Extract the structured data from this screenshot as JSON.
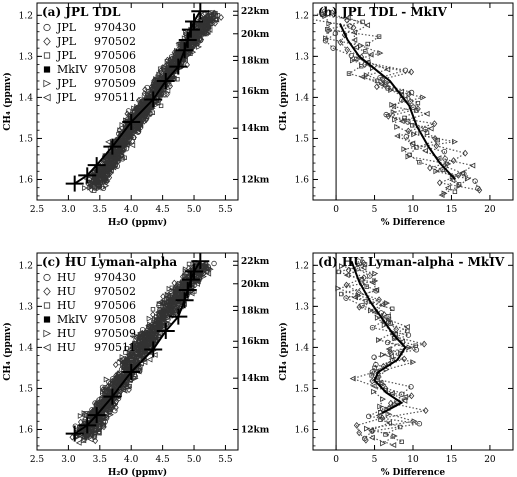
{
  "chart_data": [
    {
      "type": "scatter",
      "title": "(a) JPL TDL",
      "xlabel": "H₂O (ppmv)",
      "ylabel": "CH₄ (ppmv)",
      "xlim": [
        2.5,
        5.7
      ],
      "ylim": [
        1.65,
        1.17
      ],
      "xticks": [
        "2.5",
        "3.0",
        "3.5",
        "4.0",
        "4.5",
        "5.0",
        "5.5"
      ],
      "yticks": [
        "1.2",
        "1.3",
        "1.4",
        "1.5",
        "1.6"
      ],
      "altitude_ticks": [
        {
          "label": "22km",
          "ch4": 1.19
        },
        {
          "label": "20km",
          "ch4": 1.245
        },
        {
          "label": "18km",
          "ch4": 1.31
        },
        {
          "label": "16km",
          "ch4": 1.385
        },
        {
          "label": "14km",
          "ch4": 1.475
        },
        {
          "label": "12km",
          "ch4": 1.6
        }
      ],
      "legend": [
        {
          "instrument": "JPL",
          "date": "970430",
          "marker": "circle"
        },
        {
          "instrument": "JPL",
          "date": "970502",
          "marker": "diamond"
        },
        {
          "instrument": "JPL",
          "date": "970506",
          "marker": "square"
        },
        {
          "instrument": "MkIV",
          "date": "970508",
          "marker": "filled-square"
        },
        {
          "instrument": "JPL",
          "date": "970509",
          "marker": "triangle-right"
        },
        {
          "instrument": "JPL",
          "date": "970511",
          "marker": "triangle-left"
        }
      ],
      "mkiv_profile": [
        {
          "h2o": 5.1,
          "ch4": 1.19
        },
        {
          "h2o": 5.0,
          "ch4": 1.215
        },
        {
          "h2o": 4.95,
          "ch4": 1.235
        },
        {
          "h2o": 4.9,
          "ch4": 1.26
        },
        {
          "h2o": 4.85,
          "ch4": 1.285
        },
        {
          "h2o": 4.75,
          "ch4": 1.325
        },
        {
          "h2o": 4.55,
          "ch4": 1.36
        },
        {
          "h2o": 4.35,
          "ch4": 1.405
        },
        {
          "h2o": 4.0,
          "ch4": 1.46
        },
        {
          "h2o": 3.7,
          "ch4": 1.52
        },
        {
          "h2o": 3.45,
          "ch4": 1.565
        },
        {
          "h2o": 3.3,
          "ch4": 1.59
        },
        {
          "h2o": 3.1,
          "ch4": 1.61
        }
      ]
    },
    {
      "type": "line",
      "title": "(b) JPL TDL - MkIV",
      "xlabel": "% Difference",
      "ylabel": "CH₄ (ppmv)",
      "xlim": [
        -3,
        23
      ],
      "ylim": [
        1.65,
        1.17
      ],
      "xticks": [
        "0",
        "5",
        "10",
        "15",
        "20"
      ],
      "yticks": [
        "1.2",
        "1.3",
        "1.4",
        "1.5",
        "1.6"
      ],
      "mean_difference": [
        {
          "pct": 0.5,
          "ch4": 1.22
        },
        {
          "pct": 1.5,
          "ch4": 1.26
        },
        {
          "pct": 3.0,
          "ch4": 1.3
        },
        {
          "pct": 7.0,
          "ch4": 1.36
        },
        {
          "pct": 9.5,
          "ch4": 1.42
        },
        {
          "pct": 10.5,
          "ch4": 1.47
        },
        {
          "pct": 12.0,
          "ch4": 1.52
        },
        {
          "pct": 13.5,
          "ch4": 1.56
        },
        {
          "pct": 15.5,
          "ch4": 1.6
        }
      ]
    },
    {
      "type": "scatter",
      "title": "(c) HU Lyman-alpha",
      "xlabel": "H₂O (ppmv)",
      "ylabel": "CH₄ (ppmv)",
      "xlim": [
        2.5,
        5.7
      ],
      "ylim": [
        1.65,
        1.17
      ],
      "xticks": [
        "2.5",
        "3.0",
        "3.5",
        "4.0",
        "4.5",
        "5.0",
        "5.5"
      ],
      "yticks": [
        "1.2",
        "1.3",
        "1.4",
        "1.5",
        "1.6"
      ],
      "altitude_ticks": [
        {
          "label": "22km",
          "ch4": 1.19
        },
        {
          "label": "20km",
          "ch4": 1.245
        },
        {
          "label": "18km",
          "ch4": 1.31
        },
        {
          "label": "16km",
          "ch4": 1.385
        },
        {
          "label": "14km",
          "ch4": 1.475
        },
        {
          "label": "12km",
          "ch4": 1.6
        }
      ],
      "legend": [
        {
          "instrument": "HU",
          "date": "970430",
          "marker": "circle"
        },
        {
          "instrument": "HU",
          "date": "970502",
          "marker": "diamond"
        },
        {
          "instrument": "HU",
          "date": "970506",
          "marker": "square"
        },
        {
          "instrument": "MkIV",
          "date": "970508",
          "marker": "filled-square"
        },
        {
          "instrument": "HU",
          "date": "970509",
          "marker": "triangle-right"
        },
        {
          "instrument": "HU",
          "date": "970511",
          "marker": "triangle-left"
        }
      ],
      "mkiv_profile": [
        {
          "h2o": 5.1,
          "ch4": 1.19
        },
        {
          "h2o": 5.0,
          "ch4": 1.215
        },
        {
          "h2o": 4.95,
          "ch4": 1.235
        },
        {
          "h2o": 4.9,
          "ch4": 1.26
        },
        {
          "h2o": 4.85,
          "ch4": 1.285
        },
        {
          "h2o": 4.75,
          "ch4": 1.325
        },
        {
          "h2o": 4.55,
          "ch4": 1.36
        },
        {
          "h2o": 4.35,
          "ch4": 1.405
        },
        {
          "h2o": 4.0,
          "ch4": 1.46
        },
        {
          "h2o": 3.7,
          "ch4": 1.52
        },
        {
          "h2o": 3.45,
          "ch4": 1.565
        },
        {
          "h2o": 3.3,
          "ch4": 1.59
        },
        {
          "h2o": 3.1,
          "ch4": 1.61
        }
      ]
    },
    {
      "type": "line",
      "title": "(d) HU Lyman-alpha - MkIV",
      "xlabel": "% Difference",
      "ylabel": "CH₄ (ppmv)",
      "xlim": [
        -3,
        23
      ],
      "ylim": [
        1.65,
        1.17
      ],
      "xticks": [
        "0",
        "5",
        "10",
        "15",
        "20"
      ],
      "yticks": [
        "1.2",
        "1.3",
        "1.4",
        "1.5",
        "1.6"
      ],
      "mean_difference": [
        {
          "pct": 2.0,
          "ch4": 1.19
        },
        {
          "pct": 3.0,
          "ch4": 1.24
        },
        {
          "pct": 4.5,
          "ch4": 1.29
        },
        {
          "pct": 6.0,
          "ch4": 1.33
        },
        {
          "pct": 7.5,
          "ch4": 1.37
        },
        {
          "pct": 9.0,
          "ch4": 1.4
        },
        {
          "pct": 8.0,
          "ch4": 1.43
        },
        {
          "pct": 5.5,
          "ch4": 1.46
        },
        {
          "pct": 5.0,
          "ch4": 1.48
        },
        {
          "pct": 6.5,
          "ch4": 1.51
        },
        {
          "pct": 8.5,
          "ch4": 1.535
        },
        {
          "pct": 6.0,
          "ch4": 1.56
        }
      ]
    }
  ]
}
